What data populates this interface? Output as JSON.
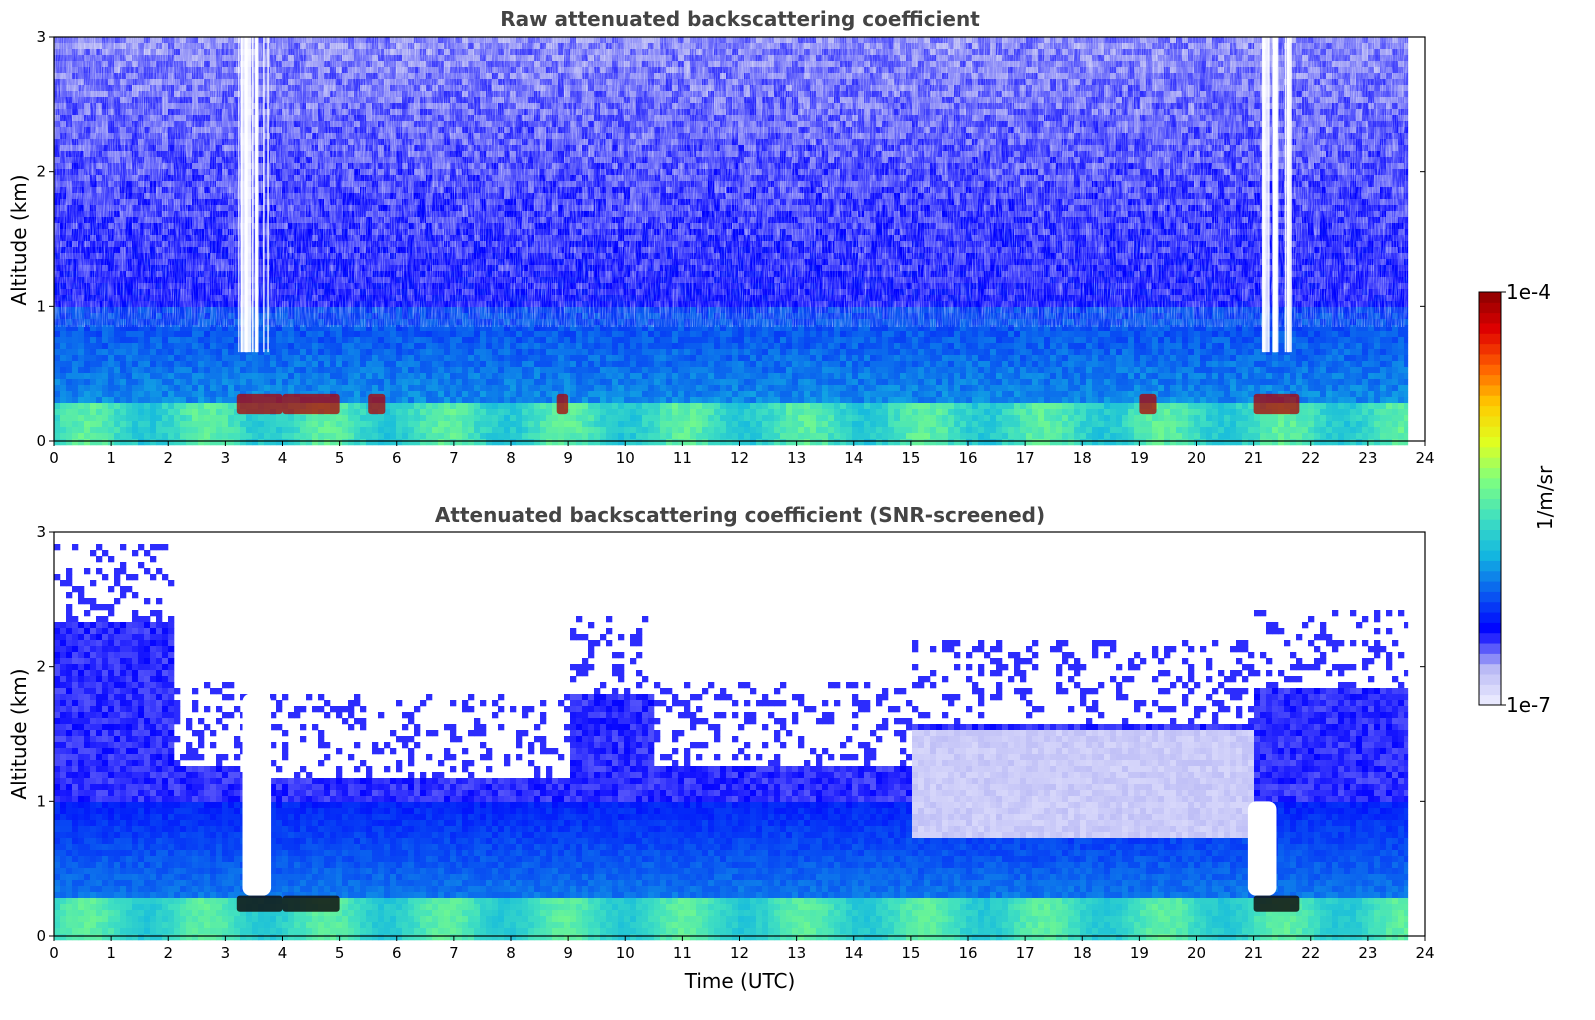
{
  "chart_data": [
    {
      "type": "heatmap",
      "title": "Raw attenuated backscattering coefficient",
      "xlabel": "",
      "ylabel": "Altitude (km)",
      "xlim": [
        0,
        24
      ],
      "ylim": [
        0,
        3
      ],
      "x_ticks": [
        "0",
        "1",
        "2",
        "3",
        "4",
        "5",
        "6",
        "7",
        "8",
        "9",
        "10",
        "11",
        "12",
        "13",
        "14",
        "15",
        "16",
        "17",
        "18",
        "19",
        "20",
        "21",
        "22",
        "23",
        "24"
      ],
      "y_ticks": [
        "0",
        "1",
        "2",
        "3"
      ],
      "data_end_hour": 23.7,
      "features": {
        "surface_layer_top_km": 0.3,
        "high_signal_patches_hours": [
          [
            3.2,
            4.0
          ],
          [
            4.0,
            5.0
          ],
          [
            5.5,
            5.8
          ],
          [
            8.8,
            9.0
          ],
          [
            19.0,
            19.3
          ],
          [
            21.0,
            21.8
          ]
        ],
        "signal_gap_hours": [
          [
            3.2,
            3.8
          ],
          [
            21.1,
            21.6
          ]
        ]
      }
    },
    {
      "type": "heatmap",
      "title": "Attenuated backscattering coefficient (SNR-screened)",
      "xlabel": "Time (UTC)",
      "ylabel": "Altitude (km)",
      "xlim": [
        0,
        24
      ],
      "ylim": [
        0,
        3
      ],
      "x_ticks": [
        "0",
        "1",
        "2",
        "3",
        "4",
        "5",
        "6",
        "7",
        "8",
        "9",
        "10",
        "11",
        "12",
        "13",
        "14",
        "15",
        "16",
        "17",
        "18",
        "19",
        "20",
        "21",
        "22",
        "23",
        "24"
      ],
      "y_ticks": [
        "0",
        "1",
        "2",
        "3"
      ],
      "data_end_hour": 23.7
    }
  ],
  "colorbar": {
    "label": "1/m/sr",
    "max_label": "1e-4",
    "min_label": "1e-7",
    "scale": "log",
    "colormap": [
      "#f0f0ff",
      "#b8b8f5",
      "#0000ff",
      "#0a5cf0",
      "#13b7e0",
      "#40e0c0",
      "#7fff7f",
      "#e0ff20",
      "#ffcc00",
      "#ff6000",
      "#e00000",
      "#8b0000"
    ]
  }
}
